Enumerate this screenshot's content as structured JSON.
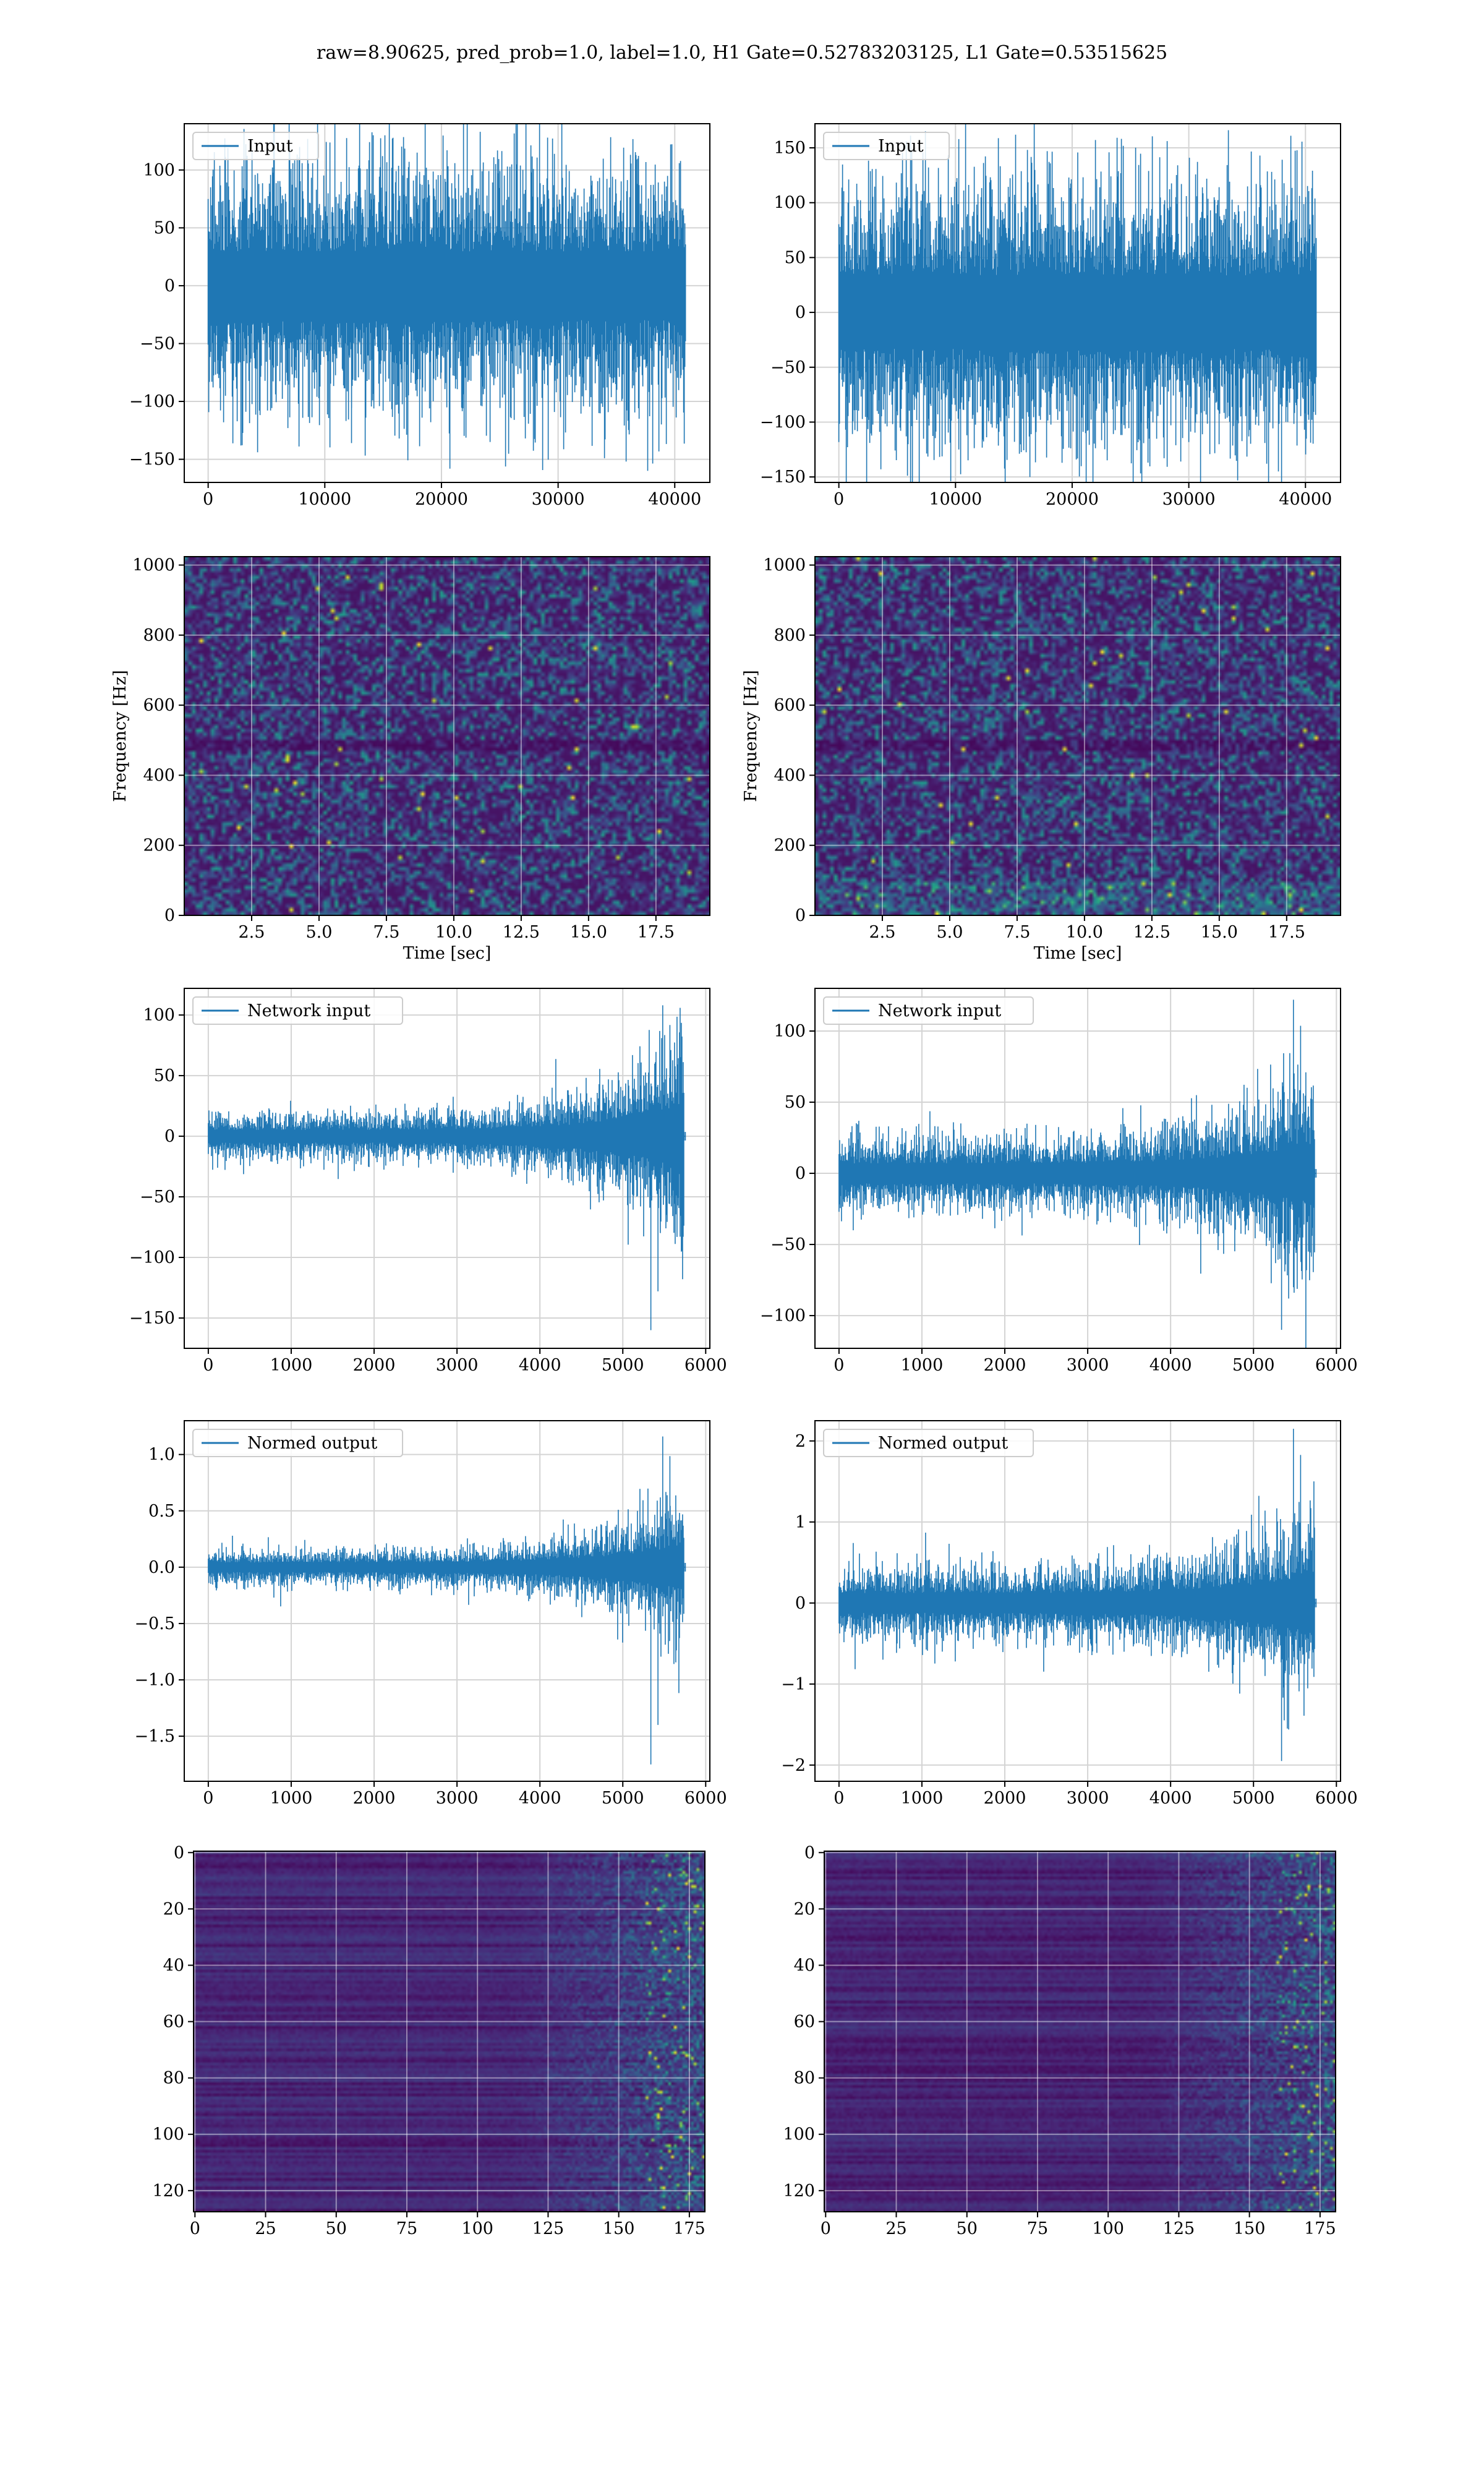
{
  "figure": {
    "suptitle": "raw=8.90625, pred_prob=1.0, label=1.0, H1 Gate=0.52783203125, L1 Gate=0.53515625",
    "line_color": "#1f77b4"
  },
  "chart_data": [
    {
      "id": "h1-input",
      "type": "line",
      "xlabel": "",
      "ylabel": "",
      "series": [
        {
          "name": "Input",
          "n": 40960,
          "envelope": {
            "p95": 85,
            "max_pos": 130,
            "min_neg": -160
          }
        }
      ],
      "xlim": [
        -2048,
        43008
      ],
      "ylim": [
        -170,
        140
      ],
      "xticks": [
        0,
        10000,
        20000,
        30000,
        40000
      ],
      "xticklabels": [
        "0",
        "10000",
        "20000",
        "30000",
        "40000"
      ],
      "yticks": [
        -150,
        -100,
        -50,
        0,
        50,
        100
      ],
      "yticklabels": [
        "−150",
        "−100",
        "−50",
        "0",
        "50",
        "100"
      ],
      "legend": "upper-left",
      "grid": true
    },
    {
      "id": "l1-input",
      "type": "line",
      "xlabel": "",
      "ylabel": "",
      "series": [
        {
          "name": "Input",
          "n": 40960,
          "envelope": {
            "p95": 95,
            "max_pos": 162,
            "min_neg": -145
          }
        }
      ],
      "xlim": [
        -2048,
        43008
      ],
      "ylim": [
        -155,
        172
      ],
      "xticks": [
        0,
        10000,
        20000,
        30000,
        40000
      ],
      "xticklabels": [
        "0",
        "10000",
        "20000",
        "30000",
        "40000"
      ],
      "yticks": [
        -150,
        -100,
        -50,
        0,
        50,
        100,
        150
      ],
      "yticklabels": [
        "−150",
        "−100",
        "−50",
        "0",
        "50",
        "100",
        "150"
      ],
      "legend": "upper-left",
      "grid": true
    },
    {
      "id": "h1-spectrogram",
      "type": "heatmap",
      "xlabel": "Time [sec]",
      "ylabel": "Frequency [Hz]",
      "xlim": [
        0,
        19.5
      ],
      "ylim": [
        0,
        1024
      ],
      "colormap": "viridis",
      "xticks": [
        2.5,
        5.0,
        7.5,
        10.0,
        12.5,
        15.0,
        17.5
      ],
      "xticklabels": [
        "2.5",
        "5.0",
        "7.5",
        "10.0",
        "12.5",
        "15.0",
        "17.5"
      ],
      "yticks": [
        0,
        200,
        400,
        600,
        800,
        1000
      ],
      "yticklabels": [
        "0",
        "200",
        "400",
        "600",
        "800",
        "1000"
      ],
      "grid": true
    },
    {
      "id": "l1-spectrogram",
      "type": "heatmap",
      "xlabel": "Time [sec]",
      "ylabel": "Frequency [Hz]",
      "xlim": [
        0,
        19.5
      ],
      "ylim": [
        0,
        1024
      ],
      "colormap": "viridis",
      "xticks": [
        2.5,
        5.0,
        7.5,
        10.0,
        12.5,
        15.0,
        17.5
      ],
      "xticklabels": [
        "2.5",
        "5.0",
        "7.5",
        "10.0",
        "12.5",
        "15.0",
        "17.5"
      ],
      "yticks": [
        0,
        200,
        400,
        600,
        800,
        1000
      ],
      "yticklabels": [
        "0",
        "200",
        "400",
        "600",
        "800",
        "1000"
      ],
      "grid": true
    },
    {
      "id": "h1-network-input",
      "type": "line",
      "xlabel": "",
      "ylabel": "",
      "series": [
        {
          "name": "Network input",
          "n": 5760,
          "envelope": {
            "early": 15,
            "late": 70,
            "max_pos": 108,
            "min_neg": -160,
            "chirp_end_x": 5740
          }
        }
      ],
      "xlim": [
        -290,
        6050
      ],
      "ylim": [
        -175,
        122
      ],
      "xticks": [
        0,
        1000,
        2000,
        3000,
        4000,
        5000,
        6000
      ],
      "xticklabels": [
        "0",
        "1000",
        "2000",
        "3000",
        "4000",
        "5000",
        "6000"
      ],
      "yticks": [
        -150,
        -100,
        -50,
        0,
        50,
        100
      ],
      "yticklabels": [
        "−150",
        "−100",
        "−50",
        "0",
        "50",
        "100"
      ],
      "legend": "upper-left",
      "grid": true
    },
    {
      "id": "l1-network-input",
      "type": "line",
      "xlabel": "",
      "ylabel": "",
      "series": [
        {
          "name": "Network input",
          "n": 5760,
          "envelope": {
            "early": 20,
            "late": 60,
            "max_pos": 122,
            "min_neg": -110,
            "chirp_end_x": 5740
          }
        }
      ],
      "xlim": [
        -290,
        6050
      ],
      "ylim": [
        -123,
        130
      ],
      "xticks": [
        0,
        1000,
        2000,
        3000,
        4000,
        5000,
        6000
      ],
      "xticklabels": [
        "0",
        "1000",
        "2000",
        "3000",
        "4000",
        "5000",
        "6000"
      ],
      "yticks": [
        -100,
        -50,
        0,
        50,
        100
      ],
      "yticklabels": [
        "−100",
        "−50",
        "0",
        "50",
        "100"
      ],
      "legend": "upper-left",
      "grid": true
    },
    {
      "id": "h1-normed-output",
      "type": "line",
      "xlabel": "",
      "ylabel": "",
      "series": [
        {
          "name": "Normed output",
          "n": 5760,
          "envelope": {
            "early": 0.12,
            "late": 0.55,
            "max_pos": 1.16,
            "min_neg": -1.75,
            "chirp_end_x": 5740
          }
        }
      ],
      "xlim": [
        -290,
        6050
      ],
      "ylim": [
        -1.9,
        1.3
      ],
      "xticks": [
        0,
        1000,
        2000,
        3000,
        4000,
        5000,
        6000
      ],
      "xticklabels": [
        "0",
        "1000",
        "2000",
        "3000",
        "4000",
        "5000",
        "6000"
      ],
      "yticks": [
        -1.5,
        -1.0,
        -0.5,
        0.0,
        0.5,
        1.0
      ],
      "yticklabels": [
        "−1.5",
        "−1.0",
        "−0.5",
        "0.0",
        "0.5",
        "1.0"
      ],
      "legend": "upper-left",
      "grid": true
    },
    {
      "id": "l1-normed-output",
      "type": "line",
      "xlabel": "",
      "ylabel": "",
      "series": [
        {
          "name": "Normed output",
          "n": 5760,
          "envelope": {
            "early": 0.35,
            "late": 1.0,
            "max_pos": 2.15,
            "min_neg": -1.95,
            "chirp_end_x": 5740
          }
        }
      ],
      "xlim": [
        -290,
        6050
      ],
      "ylim": [
        -2.2,
        2.25
      ],
      "xticks": [
        0,
        1000,
        2000,
        3000,
        4000,
        5000,
        6000
      ],
      "xticklabels": [
        "0",
        "1000",
        "2000",
        "3000",
        "4000",
        "5000",
        "6000"
      ],
      "yticks": [
        -2,
        -1,
        0,
        1,
        2
      ],
      "yticklabels": [
        "−2",
        "−1",
        "0",
        "1",
        "2"
      ],
      "legend": "upper-left",
      "grid": true
    },
    {
      "id": "h1-feature-map",
      "type": "heatmap",
      "xlabel": "",
      "ylabel": "",
      "xlim": [
        -0.5,
        180.5
      ],
      "ylim": [
        127.5,
        -0.5
      ],
      "colormap": "viridis",
      "xticks": [
        0,
        25,
        50,
        75,
        100,
        125,
        150,
        175
      ],
      "xticklabels": [
        "0",
        "25",
        "50",
        "75",
        "100",
        "125",
        "150",
        "175"
      ],
      "yticks": [
        0,
        20,
        40,
        60,
        80,
        100,
        120
      ],
      "yticklabels": [
        "0",
        "20",
        "40",
        "60",
        "80",
        "100",
        "120"
      ],
      "grid": true
    },
    {
      "id": "l1-feature-map",
      "type": "heatmap",
      "xlabel": "",
      "ylabel": "",
      "xlim": [
        -0.5,
        180.5
      ],
      "ylim": [
        127.5,
        -0.5
      ],
      "colormap": "viridis",
      "xticks": [
        0,
        25,
        50,
        75,
        100,
        125,
        150,
        175
      ],
      "xticklabels": [
        "0",
        "25",
        "50",
        "75",
        "100",
        "125",
        "150",
        "175"
      ],
      "yticks": [
        0,
        20,
        40,
        60,
        80,
        100,
        120
      ],
      "yticklabels": [
        "0",
        "20",
        "40",
        "60",
        "80",
        "100",
        "120"
      ],
      "grid": true
    }
  ]
}
